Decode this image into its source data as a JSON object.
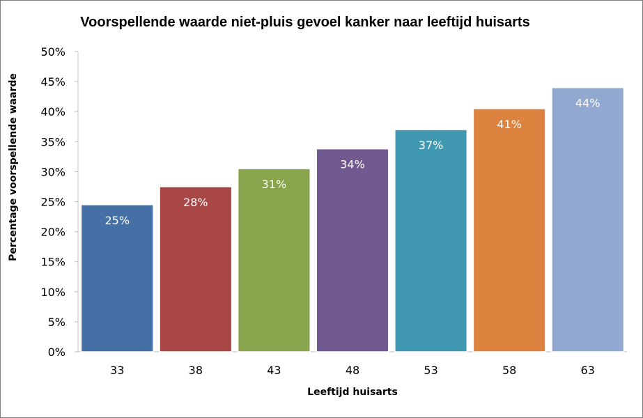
{
  "chart_data": {
    "type": "bar",
    "title": "Voorspellende waarde niet-pluis gevoel kanker naar leeftijd huisarts",
    "xlabel": "Leeftijd huisarts",
    "ylabel": "Percentage voorspellende waarde",
    "categories": [
      "33",
      "38",
      "43",
      "48",
      "53",
      "58",
      "63"
    ],
    "values": [
      0.245,
      0.275,
      0.305,
      0.338,
      0.37,
      0.405,
      0.44
    ],
    "data_labels": [
      "25%",
      "28%",
      "31%",
      "34%",
      "37%",
      "41%",
      "44%"
    ],
    "colors": [
      "#4470a5",
      "#a84645",
      "#88a54d",
      "#70598f",
      "#4099b0",
      "#dd8340",
      "#91a9d0"
    ],
    "ylim": [
      0,
      0.5
    ],
    "yticks": [
      {
        "value": 0.0,
        "label": "0%"
      },
      {
        "value": 0.05,
        "label": "5%"
      },
      {
        "value": 0.1,
        "label": "10%"
      },
      {
        "value": 0.15,
        "label": "15%"
      },
      {
        "value": 0.2,
        "label": "20%"
      },
      {
        "value": 0.25,
        "label": "25%"
      },
      {
        "value": 0.3,
        "label": "30%"
      },
      {
        "value": 0.35,
        "label": "35%"
      },
      {
        "value": 0.4,
        "label": "40%"
      },
      {
        "value": 0.45,
        "label": "45%"
      },
      {
        "value": 0.5,
        "label": "50%"
      }
    ],
    "grid": false,
    "legend": "none"
  }
}
